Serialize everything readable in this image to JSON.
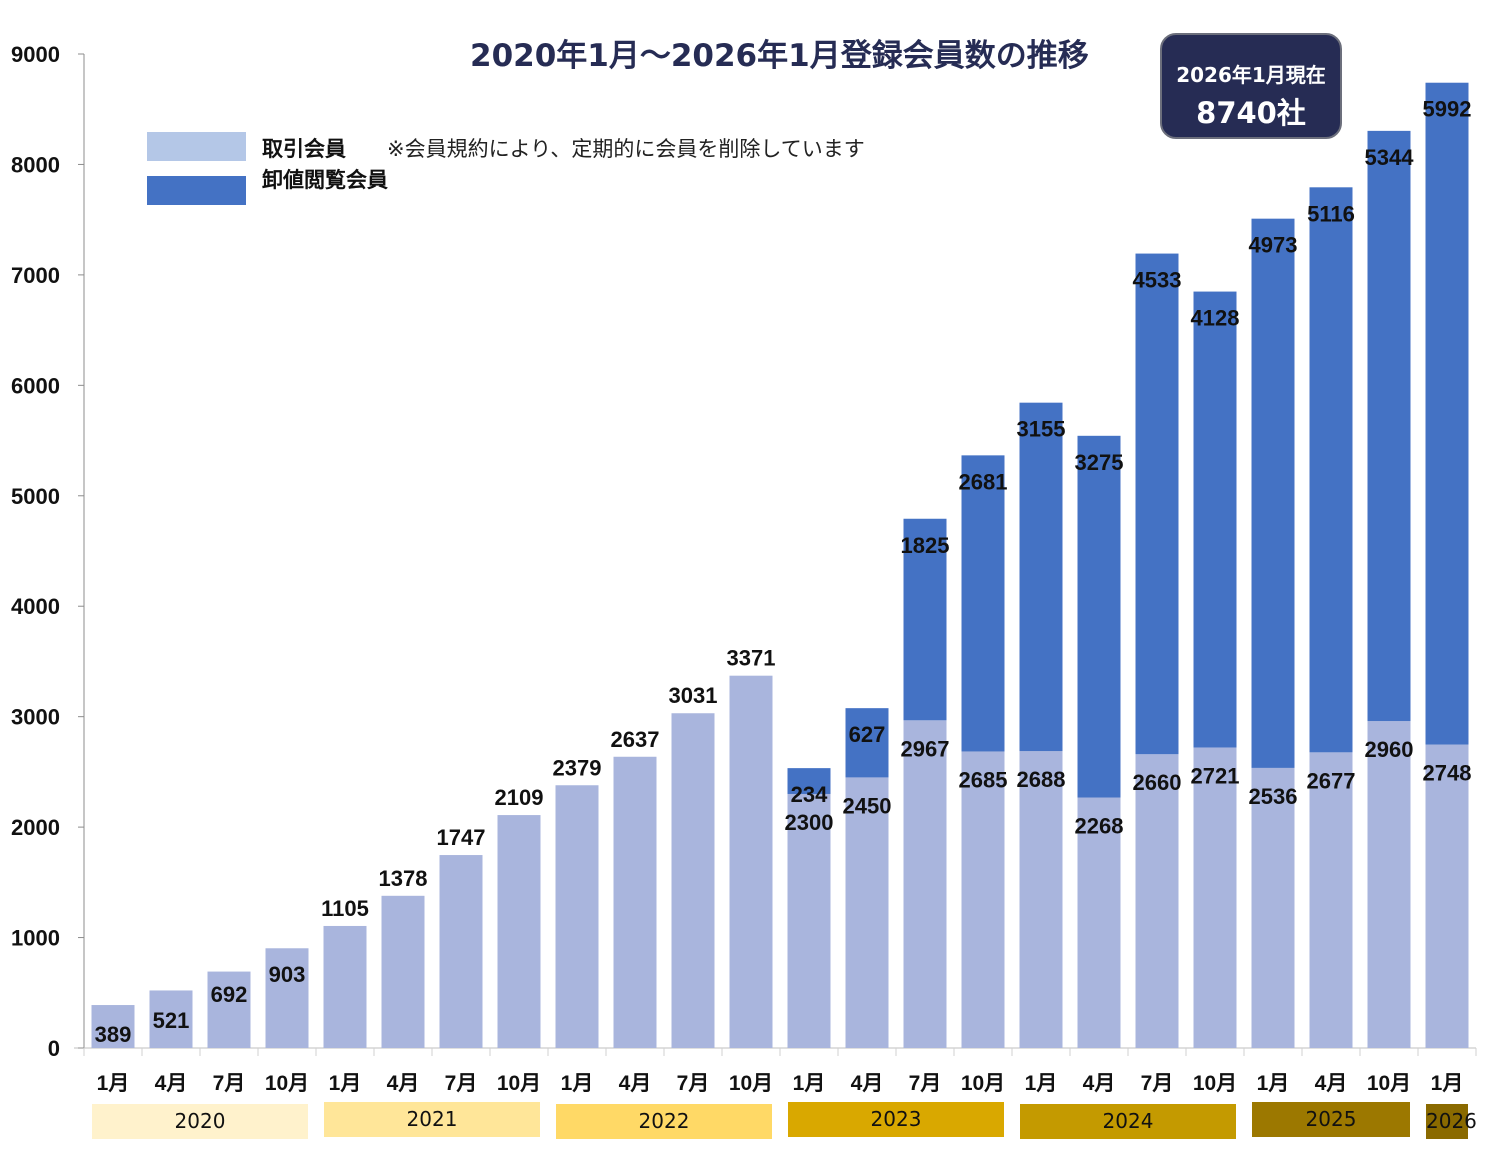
{
  "chart_data": {
    "type": "bar",
    "stacked": true,
    "title": "2020年1月～2026年1月登録会員数の推移",
    "xlabel": "",
    "ylabel": "",
    "ylim": [
      0,
      9000
    ],
    "yticks": [
      0,
      1000,
      2000,
      3000,
      4000,
      5000,
      6000,
      7000,
      8000,
      9000
    ],
    "grid": false,
    "legend_position": "top-left",
    "categories": [
      "1月",
      "4月",
      "7月",
      "10月",
      "1月",
      "4月",
      "7月",
      "10月",
      "1月",
      "4月",
      "7月",
      "10月",
      "1月",
      "4月",
      "7月",
      "10月",
      "1月",
      "4月",
      "7月",
      "10月",
      "1月",
      "4月",
      "10月",
      "1月"
    ],
    "category_years": [
      "2020",
      "2020",
      "2020",
      "2020",
      "2021",
      "2021",
      "2021",
      "2021",
      "2022",
      "2022",
      "2022",
      "2022",
      "2023",
      "2023",
      "2023",
      "2023",
      "2024",
      "2024",
      "2024",
      "2024",
      "2025",
      "2025",
      "2025",
      "2026"
    ],
    "series": [
      {
        "name": "取引会員",
        "color": "#a9b5dd",
        "values": [
          389,
          521,
          692,
          903,
          1105,
          1378,
          1747,
          2109,
          2379,
          2637,
          3031,
          3371,
          2300,
          2450,
          2967,
          2685,
          2688,
          2268,
          2660,
          2721,
          2536,
          2677,
          2960,
          2748
        ]
      },
      {
        "name": "卸値閲覧会員",
        "color": "#4472c4",
        "values": [
          0,
          0,
          0,
          0,
          0,
          0,
          0,
          0,
          0,
          0,
          0,
          0,
          234,
          627,
          1825,
          2681,
          3155,
          3275,
          4533,
          4128,
          4973,
          5116,
          5344,
          5992
        ]
      }
    ],
    "annotations": {
      "legend_note": "※会員規約により、定期的に会員を削除しています",
      "badge_line1": "2026年1月現在",
      "badge_line2": "8740社"
    },
    "year_groups": [
      {
        "label": "2020",
        "color": "#fff2cc"
      },
      {
        "label": "2021",
        "color": "#ffe699"
      },
      {
        "label": "2022",
        "color": "#ffd966"
      },
      {
        "label": "2023",
        "color": "#d9a800"
      },
      {
        "label": "2024",
        "color": "#c49a00"
      },
      {
        "label": "2025",
        "color": "#9c7800"
      },
      {
        "label": "2026",
        "color": "#8a6a00"
      }
    ]
  }
}
